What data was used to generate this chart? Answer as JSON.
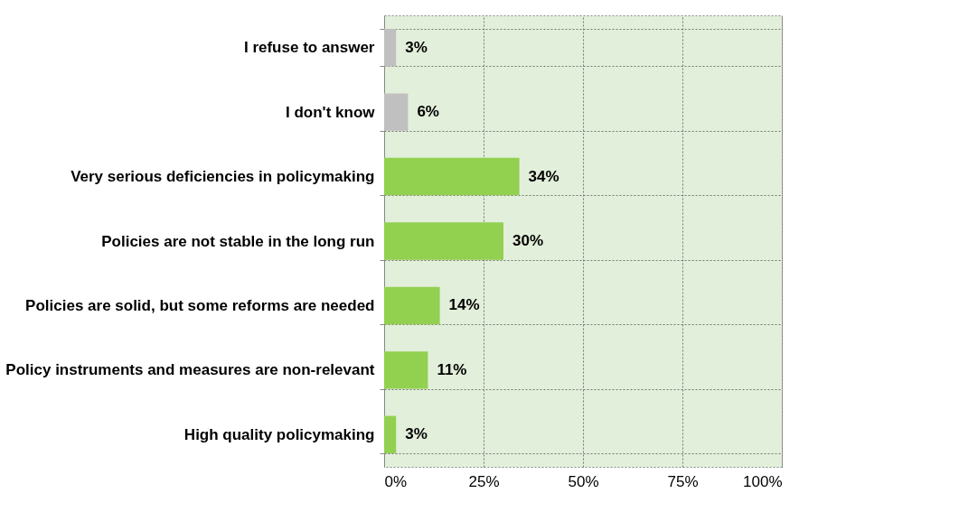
{
  "chart_data": {
    "type": "bar",
    "orientation": "horizontal",
    "categories": [
      "I refuse to answer",
      "I don't know",
      "Very serious deficiencies in policymaking",
      "Policies are not stable in the long run",
      "Policies are solid, but some reforms are needed",
      "Policy instruments and measures are non-relevant",
      "High quality policymaking"
    ],
    "values": [
      3,
      6,
      34,
      30,
      14,
      11,
      3
    ],
    "colors": [
      "#c0c0c0",
      "#c0c0c0",
      "#92d050",
      "#92d050",
      "#92d050",
      "#92d050",
      "#92d050"
    ],
    "value_labels": [
      "3%",
      "6%",
      "34%",
      "30%",
      "14%",
      "11%",
      "3%"
    ],
    "xlim": [
      0,
      100
    ],
    "xticks": [
      {
        "value": 0,
        "label": "0%"
      },
      {
        "value": 25,
        "label": "25%"
      },
      {
        "value": 50,
        "label": "50%"
      },
      {
        "value": 75,
        "label": "75%"
      },
      {
        "value": 100,
        "label": "100%"
      }
    ],
    "grid": true
  }
}
